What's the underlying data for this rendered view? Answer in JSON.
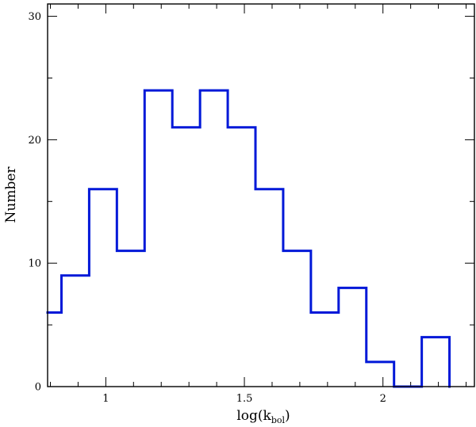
{
  "chart_data": {
    "type": "histogram",
    "title": "",
    "xlabel": "log(k",
    "xlabel_sub": "bol",
    "xlabel_close": ")",
    "ylabel": "Number",
    "xlim": [
      0.79,
      2.33
    ],
    "ylim": [
      0,
      31
    ],
    "x_major_ticks": [
      1,
      1.5,
      2
    ],
    "x_major_tick_labels": [
      "1",
      "1.5",
      "2"
    ],
    "x_minor_step": 0.1,
    "y_major_ticks": [
      0,
      10,
      20,
      30
    ],
    "y_major_tick_labels": [
      "0",
      "10",
      "20",
      "30"
    ],
    "y_minor_step": 5,
    "grid": false,
    "legend": "none",
    "color": "#0018d8",
    "bins": [
      {
        "x0": 0.79,
        "x1": 0.84,
        "count": 6
      },
      {
        "x0": 0.84,
        "x1": 0.94,
        "count": 9
      },
      {
        "x0": 0.94,
        "x1": 1.04,
        "count": 16
      },
      {
        "x0": 1.04,
        "x1": 1.14,
        "count": 11
      },
      {
        "x0": 1.14,
        "x1": 1.24,
        "count": 24
      },
      {
        "x0": 1.24,
        "x1": 1.34,
        "count": 21
      },
      {
        "x0": 1.34,
        "x1": 1.44,
        "count": 24
      },
      {
        "x0": 1.44,
        "x1": 1.54,
        "count": 21
      },
      {
        "x0": 1.54,
        "x1": 1.64,
        "count": 16
      },
      {
        "x0": 1.64,
        "x1": 1.74,
        "count": 11
      },
      {
        "x0": 1.74,
        "x1": 1.84,
        "count": 6
      },
      {
        "x0": 1.84,
        "x1": 1.94,
        "count": 8
      },
      {
        "x0": 1.94,
        "x1": 2.04,
        "count": 2
      },
      {
        "x0": 2.04,
        "x1": 2.14,
        "count": 0
      },
      {
        "x0": 2.14,
        "x1": 2.24,
        "count": 4
      }
    ]
  }
}
